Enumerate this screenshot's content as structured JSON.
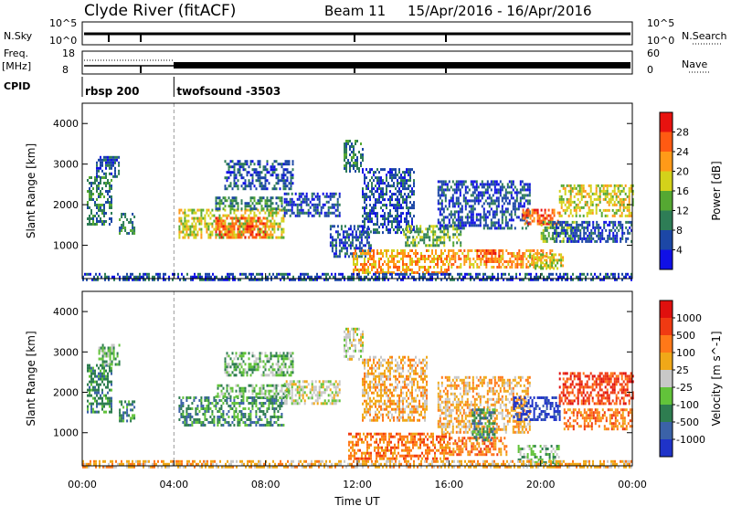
{
  "header": {
    "title": "Clyde River (fitACF)",
    "beam": "Beam 11",
    "dates": "15/Apr/2016 - 16/Apr/2016"
  },
  "strips": {
    "nsky_label": "N.Sky",
    "nsky_ticks": [
      "10^5",
      "10^0"
    ],
    "nsearch_label": "N.Search",
    "nsearch_ticks": [
      "10^5",
      "10^0"
    ],
    "freq_label": "Freq.",
    "freq_unit": "[MHz]",
    "freq_ticks": [
      "18",
      "8"
    ],
    "nave_label": "Nave",
    "nave_ticks": [
      "60",
      "0"
    ],
    "cpid_label": "CPID",
    "cpid_segments": [
      {
        "name": "rbsp 200",
        "start_h": 0,
        "end_h": 4.0
      },
      {
        "name": "twofsound -3503",
        "start_h": 4.0,
        "end_h": 24
      }
    ]
  },
  "chart_data": [
    {
      "type": "heatmap",
      "title": "",
      "xlabel": "Time UT",
      "ylabel": "Slant Range [km]",
      "xlim": [
        0,
        24
      ],
      "ylim": [
        180,
        4500
      ],
      "x_ticks": [
        "00:00",
        "04:00",
        "08:00",
        "12:00",
        "16:00",
        "20:00",
        "00:00"
      ],
      "y_ticks": [
        1000,
        2000,
        3000,
        4000
      ],
      "colorbar": {
        "label": "Power [dB]",
        "ticks": [
          "4",
          "8",
          "12",
          "16",
          "20",
          "24",
          "28"
        ],
        "colors": [
          "#1010e6",
          "#1c47a6",
          "#2e7d56",
          "#55a832",
          "#d4d21a",
          "#ff9a18",
          "#ff5a12",
          "#e8120f"
        ]
      },
      "bands": [
        {
          "t0": 0.2,
          "t1": 1.3,
          "r0": 1500,
          "r1": 2700,
          "level": 2
        },
        {
          "t0": 0.6,
          "t1": 1.6,
          "r0": 2700,
          "r1": 3200,
          "level": 1
        },
        {
          "t0": 1.6,
          "t1": 2.3,
          "r0": 1300,
          "r1": 1800,
          "level": 2
        },
        {
          "t0": 4.2,
          "t1": 8.8,
          "r0": 1200,
          "r1": 1900,
          "level": 4
        },
        {
          "t0": 5.8,
          "t1": 8.0,
          "r0": 1200,
          "r1": 1700,
          "level": 6
        },
        {
          "t0": 5.8,
          "t1": 8.8,
          "r0": 1900,
          "r1": 2200,
          "level": 2
        },
        {
          "t0": 6.2,
          "t1": 9.2,
          "r0": 2400,
          "r1": 3100,
          "level": 1
        },
        {
          "t0": 8.8,
          "t1": 11.2,
          "r0": 1700,
          "r1": 2300,
          "level": 1
        },
        {
          "t0": 10.8,
          "t1": 12.6,
          "r0": 700,
          "r1": 1500,
          "level": 1
        },
        {
          "t0": 11.4,
          "t1": 12.2,
          "r0": 2800,
          "r1": 3600,
          "level": 2
        },
        {
          "t0": 11.8,
          "t1": 16.0,
          "r0": 350,
          "r1": 900,
          "level": 5
        },
        {
          "t0": 12.2,
          "t1": 14.5,
          "r0": 1300,
          "r1": 2900,
          "level": 1
        },
        {
          "t0": 14.0,
          "t1": 16.5,
          "r0": 1000,
          "r1": 1500,
          "level": 3
        },
        {
          "t0": 15.5,
          "t1": 19.5,
          "r0": 1400,
          "r1": 2600,
          "level": 1
        },
        {
          "t0": 16.0,
          "t1": 20.5,
          "r0": 450,
          "r1": 900,
          "level": 5
        },
        {
          "t0": 17.2,
          "t1": 18.3,
          "r0": 600,
          "r1": 900,
          "level": 6
        },
        {
          "t0": 19.2,
          "t1": 20.8,
          "r0": 1500,
          "r1": 1900,
          "level": 6
        },
        {
          "t0": 19.5,
          "t1": 21.0,
          "r0": 400,
          "r1": 800,
          "level": 4
        },
        {
          "t0": 20.0,
          "t1": 21.5,
          "r0": 1100,
          "r1": 1600,
          "level": 3
        },
        {
          "t0": 20.8,
          "t1": 24.0,
          "r0": 1700,
          "r1": 2500,
          "level": 4
        },
        {
          "t0": 20.5,
          "t1": 24.0,
          "r0": 1100,
          "r1": 1600,
          "level": 1
        },
        {
          "t0": 0.0,
          "t1": 24.0,
          "r0": 180,
          "r1": 320,
          "level": 1
        }
      ]
    },
    {
      "type": "heatmap",
      "title": "",
      "xlabel": "Time UT",
      "ylabel": "Slant Range [km]",
      "xlim": [
        0,
        24
      ],
      "ylim": [
        180,
        4500
      ],
      "x_ticks": [
        "00:00",
        "04:00",
        "08:00",
        "12:00",
        "16:00",
        "20:00",
        "00:00"
      ],
      "y_ticks": [
        1000,
        2000,
        3000,
        4000
      ],
      "colorbar": {
        "label": "Velocity [m s^-1]",
        "ticks": [
          "1000",
          "500",
          "100",
          "25",
          "-25",
          "-100",
          "-500",
          "-1000"
        ],
        "colors": [
          "#1f33c8",
          "#3b62a8",
          "#2e7d50",
          "#62c33a",
          "#c8c8c8",
          "#f0a818",
          "#ff7818",
          "#f03a12",
          "#e0100e"
        ]
      },
      "bands": [
        {
          "t0": 0.2,
          "t1": 1.3,
          "r0": 1500,
          "r1": 2700,
          "level": 2
        },
        {
          "t0": 0.7,
          "t1": 1.6,
          "r0": 2700,
          "r1": 3200,
          "level": 3
        },
        {
          "t0": 1.6,
          "t1": 2.3,
          "r0": 1300,
          "r1": 1800,
          "level": 2
        },
        {
          "t0": 4.2,
          "t1": 8.8,
          "r0": 1200,
          "r1": 1900,
          "level": 2
        },
        {
          "t0": 5.8,
          "t1": 9.0,
          "r0": 1900,
          "r1": 2200,
          "level": 3
        },
        {
          "t0": 6.2,
          "t1": 9.2,
          "r0": 2400,
          "r1": 3000,
          "level": 3
        },
        {
          "t0": 8.8,
          "t1": 11.2,
          "r0": 1700,
          "r1": 2300,
          "level": 4
        },
        {
          "t0": 11.4,
          "t1": 12.2,
          "r0": 2800,
          "r1": 3600,
          "level": 4
        },
        {
          "t0": 11.6,
          "t1": 16.0,
          "r0": 350,
          "r1": 1000,
          "level": 6
        },
        {
          "t0": 12.2,
          "t1": 15.0,
          "r0": 1300,
          "r1": 2900,
          "level": 5
        },
        {
          "t0": 15.5,
          "t1": 19.5,
          "r0": 1000,
          "r1": 2400,
          "level": 5
        },
        {
          "t0": 16.0,
          "t1": 18.5,
          "r0": 450,
          "r1": 900,
          "level": 6
        },
        {
          "t0": 17.0,
          "t1": 18.0,
          "r0": 800,
          "r1": 1600,
          "level": 2
        },
        {
          "t0": 18.8,
          "t1": 20.8,
          "r0": 1300,
          "r1": 1900,
          "level": 0
        },
        {
          "t0": 19.0,
          "t1": 20.8,
          "r0": 180,
          "r1": 700,
          "level": 3
        },
        {
          "t0": 20.8,
          "t1": 24.0,
          "r0": 1700,
          "r1": 2500,
          "level": 7
        },
        {
          "t0": 21.0,
          "t1": 24.0,
          "r0": 1100,
          "r1": 1600,
          "level": 6
        },
        {
          "t0": 0.0,
          "t1": 24.0,
          "r0": 180,
          "r1": 320,
          "level": 5
        }
      ]
    }
  ]
}
